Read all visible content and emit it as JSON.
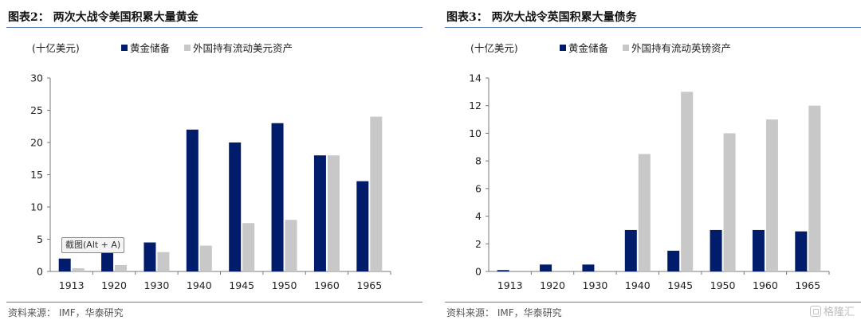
{
  "colors": {
    "navy": "#001c6b",
    "grey": "#c8c8c8",
    "rule": "#5a7fb8"
  },
  "left": {
    "title": "图表2：  两次大战令美国积累大量黄金",
    "source": "资料来源：  IMF，华泰研究",
    "tooltip": "截图(Alt + A)"
  },
  "right": {
    "title": "图表3：  两次大战令英国积累大量债务",
    "source": "资料来源：  IMF，华泰研究"
  },
  "watermark": {
    "text": "格隆汇",
    "icon": "gelonghui-logo-icon"
  },
  "chart_data": [
    {
      "type": "bar",
      "title": "两次大战令美国积累大量黄金",
      "unit_label": "(十亿美元)",
      "categories": [
        "1913",
        "1920",
        "1930",
        "1940",
        "1945",
        "1950",
        "1960",
        "1965"
      ],
      "series": [
        {
          "name": "黄金储备",
          "color": "#001c6b",
          "values": [
            2,
            3,
            4.5,
            22,
            20,
            23,
            18,
            14
          ]
        },
        {
          "name": "外国持有流动美元资产",
          "color": "#c8c8c8",
          "values": [
            0.5,
            1,
            3,
            4,
            7.5,
            8,
            18,
            24
          ]
        }
      ],
      "ylim": [
        0,
        30
      ],
      "yticks": [
        0,
        5,
        10,
        15,
        20,
        25,
        30
      ],
      "grid": false,
      "legend": "top"
    },
    {
      "type": "bar",
      "title": "两次大战令英国积累大量债务",
      "unit_label": "(十亿美元)",
      "categories": [
        "1913",
        "1920",
        "1930",
        "1940",
        "1945",
        "1950",
        "1960",
        "1965"
      ],
      "series": [
        {
          "name": "黄金储备",
          "color": "#001c6b",
          "values": [
            0.1,
            0.5,
            0.5,
            3,
            1.5,
            3,
            3,
            2.9
          ]
        },
        {
          "name": "外国持有流动英镑资产",
          "color": "#c8c8c8",
          "values": [
            0,
            0,
            0,
            8.5,
            13,
            10,
            11,
            12
          ]
        }
      ],
      "ylim": [
        0,
        14
      ],
      "yticks": [
        0,
        2,
        4,
        6,
        8,
        10,
        12,
        14
      ],
      "grid": false,
      "legend": "top"
    }
  ]
}
